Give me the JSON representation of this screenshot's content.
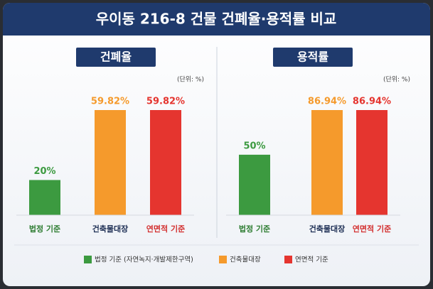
{
  "title": "우이동 216-8 건물 건폐율·용적률 비교",
  "legend": [
    {
      "label": "법정 기준 (자연녹지·개발제한구역)",
      "color": "#3c9a40"
    },
    {
      "label": "건축물대장",
      "color": "#f59a2c"
    },
    {
      "label": "연면적 기준",
      "color": "#e5352f"
    }
  ],
  "chart_data": [
    {
      "type": "bar",
      "title": "건폐율",
      "unit_note": "(단위: %)",
      "categories": [
        "법정 기준",
        "건축물대장",
        "연면적 기준"
      ],
      "values": [
        20,
        59.82,
        59.82
      ],
      "value_labels": [
        "20%",
        "59.82%",
        "59.82%"
      ],
      "colors": [
        "#3c9a40",
        "#f59a2c",
        "#e5352f"
      ],
      "label_colors": [
        "#2e7d32",
        "#1e2f55",
        "#d32f2f"
      ]
    },
    {
      "type": "bar",
      "title": "용적률",
      "unit_note": "(단위: %)",
      "categories": [
        "법정 기준",
        "건축물대장",
        "연면적 기준"
      ],
      "values": [
        50,
        86.94,
        86.94
      ],
      "value_labels": [
        "50%",
        "86.94%",
        "86.94%"
      ],
      "colors": [
        "#3c9a40",
        "#f59a2c",
        "#e5352f"
      ],
      "label_colors": [
        "#2e7d32",
        "#1e2f55",
        "#d32f2f"
      ]
    }
  ]
}
